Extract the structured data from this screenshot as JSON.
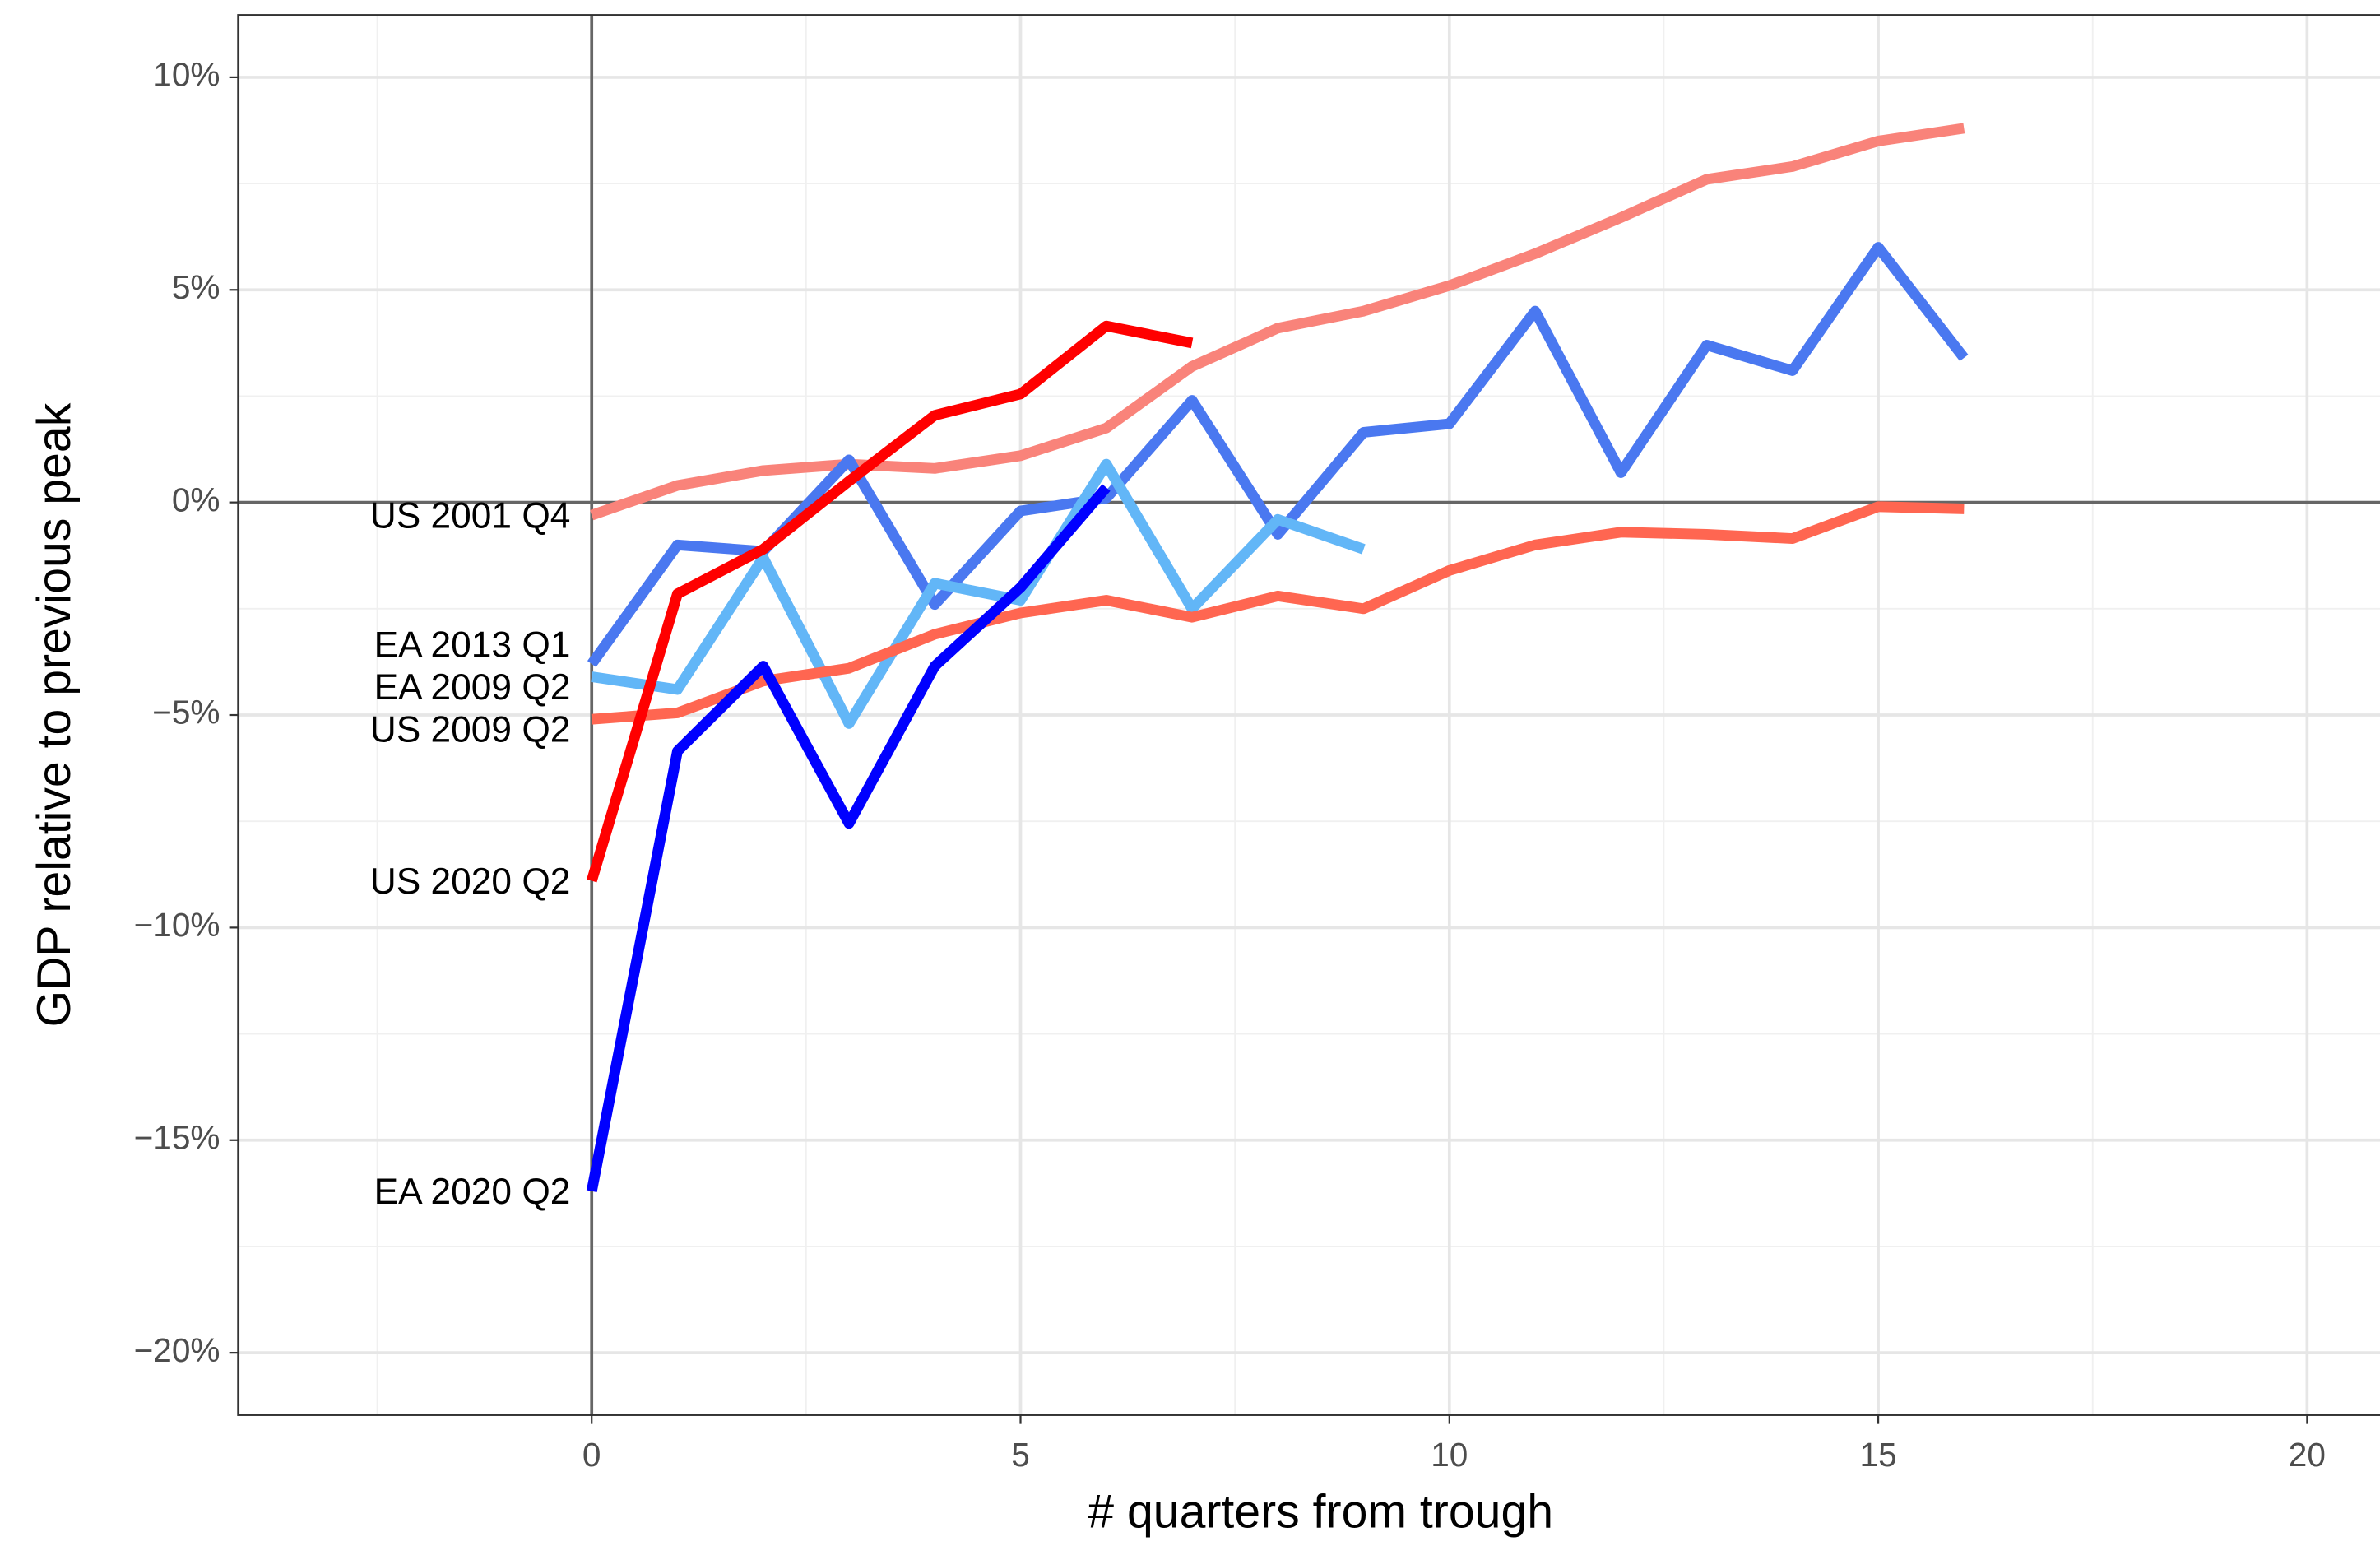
{
  "chart_data": {
    "type": "line",
    "x_label": "# quarters from trough",
    "y_label": "GDP relative to previous peak",
    "xlim": [
      -4.12,
      20.85
    ],
    "ylim": [
      -21.46,
      11.46
    ],
    "xticks": [
      0,
      5,
      10,
      15,
      20
    ],
    "yticks": [
      {
        "value": -20,
        "label": "−20%"
      },
      {
        "value": -15,
        "label": "−15%"
      },
      {
        "value": -10,
        "label": "−10%"
      },
      {
        "value": -5,
        "label": "−5%"
      },
      {
        "value": 0,
        "label": "0%"
      },
      {
        "value": 5,
        "label": "5%"
      },
      {
        "value": 10,
        "label": "10%"
      }
    ],
    "minor_xticks": [
      -2.5,
      2.5,
      7.5,
      12.5,
      17.5
    ],
    "minor_yticks": [
      -17.5,
      -12.5,
      -7.5,
      -2.5,
      2.5,
      7.5
    ],
    "grid": true,
    "series": [
      {
        "name": "US 2001 Q4",
        "color": "#f9837a",
        "x": [
          0,
          1,
          2,
          3,
          4,
          5,
          6,
          7,
          8,
          9,
          10,
          11,
          12,
          13,
          14,
          15,
          16
        ],
        "values": [
          -0.3,
          0.4,
          0.75,
          0.9,
          0.8,
          1.1,
          1.75,
          3.2,
          4.1,
          4.5,
          5.1,
          5.85,
          6.7,
          7.6,
          7.9,
          8.5,
          8.8
        ]
      },
      {
        "name": "EA 2013 Q1",
        "color": "#4a78f0",
        "x": [
          0,
          1,
          2,
          3,
          4,
          5,
          6,
          7,
          8,
          9,
          10,
          11,
          12,
          13,
          14,
          15,
          16
        ],
        "values": [
          -3.8,
          -1.0,
          -1.15,
          1.0,
          -2.4,
          -0.2,
          0.1,
          2.4,
          -0.75,
          1.65,
          1.85,
          4.5,
          0.7,
          3.7,
          3.1,
          6.0,
          3.4
        ]
      },
      {
        "name": "EA 2009 Q2",
        "color": "#62b6f7",
        "x": [
          0,
          1,
          2,
          3,
          4,
          5,
          6,
          7,
          8,
          9
        ],
        "values": [
          -4.1,
          -4.4,
          -1.3,
          -5.2,
          -1.9,
          -2.3,
          0.9,
          -2.5,
          -0.4,
          -1.1
        ]
      },
      {
        "name": "US 2009 Q2",
        "color": "#ff6651",
        "x": [
          0,
          1,
          2,
          3,
          4,
          5,
          6,
          7,
          8,
          9,
          10,
          11,
          12,
          13,
          14,
          15,
          16
        ],
        "values": [
          -5.1,
          -4.95,
          -4.2,
          -3.9,
          -3.1,
          -2.6,
          -2.3,
          -2.7,
          -2.2,
          -2.5,
          -1.6,
          -1.0,
          -0.7,
          -0.75,
          -0.85,
          -0.1,
          -0.15
        ]
      },
      {
        "name": "US 2020 Q2",
        "color": "#ff0000",
        "x": [
          0,
          1,
          2,
          3,
          4,
          5,
          6,
          7
        ],
        "values": [
          -8.9,
          -2.15,
          -1.1,
          0.5,
          2.05,
          2.55,
          4.15,
          3.75
        ]
      },
      {
        "name": "EA 2020 Q2",
        "color": "#0000ff",
        "x": [
          0,
          1,
          2,
          3,
          4,
          5,
          6
        ],
        "values": [
          -16.2,
          -5.85,
          -3.85,
          -7.55,
          -3.85,
          -2.0,
          0.35
        ]
      }
    ]
  }
}
